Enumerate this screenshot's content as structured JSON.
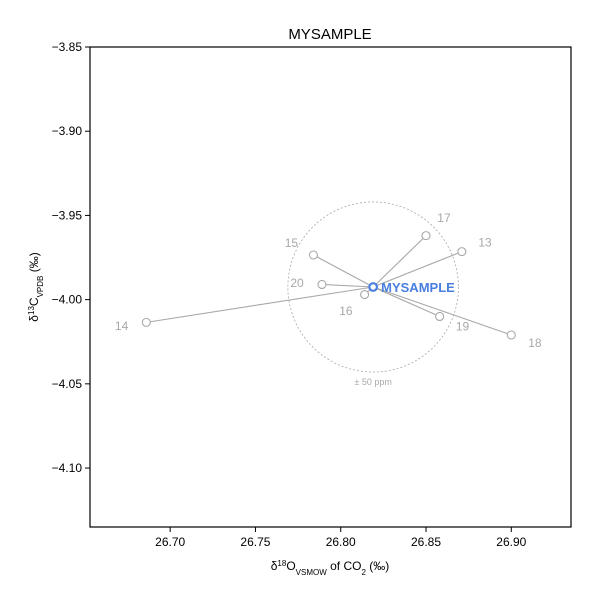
{
  "chart_data": {
    "type": "scatter",
    "title": "MYSAMPLE",
    "xlabel": {
      "prefix": "δ",
      "sup": "18",
      "main": "O",
      "sub": "VSMOW",
      "suffix_pre": " of CO",
      "sub2": "2",
      "suffix": " (‰)"
    },
    "ylabel": {
      "prefix": "δ",
      "sup": "13",
      "main": "C",
      "sub": "VPDB",
      "suffix": " (‰)"
    },
    "xlim": [
      26.653,
      26.935
    ],
    "ylim": [
      -4.135,
      -3.85
    ],
    "xticks": [
      26.7,
      26.75,
      26.8,
      26.85,
      26.9
    ],
    "xtick_labels": [
      "26.70",
      "26.75",
      "26.80",
      "26.85",
      "26.90"
    ],
    "yticks": [
      -3.85,
      -3.9,
      -3.95,
      -4.0,
      -4.05,
      -4.1
    ],
    "ytick_labels": [
      "−3.85",
      "−3.90",
      "−3.95",
      "−4.00",
      "−4.05",
      "−4.10"
    ],
    "center": {
      "label": "MYSAMPLE",
      "x": 26.819,
      "y": -3.9925
    },
    "points": [
      {
        "label": "13",
        "x": 26.871,
        "y": -3.9715
      },
      {
        "label": "14",
        "x": 26.686,
        "y": -4.0135
      },
      {
        "label": "15",
        "x": 26.784,
        "y": -3.9735
      },
      {
        "label": "16",
        "x": 26.814,
        "y": -3.997
      },
      {
        "label": "17",
        "x": 26.85,
        "y": -3.962
      },
      {
        "label": "18",
        "x": 26.9,
        "y": -4.021
      },
      {
        "label": "19",
        "x": 26.858,
        "y": -4.01
      },
      {
        "label": "20",
        "x": 26.789,
        "y": -3.991
      }
    ],
    "ellipse": {
      "label": "± 50 ppm",
      "rx": 0.05,
      "ry": -0.0505
    }
  },
  "colors": {
    "center": "#4a7fe0",
    "points": "#a8a8a8",
    "ellipse": "#a8a8a8",
    "axis": "#000000"
  }
}
